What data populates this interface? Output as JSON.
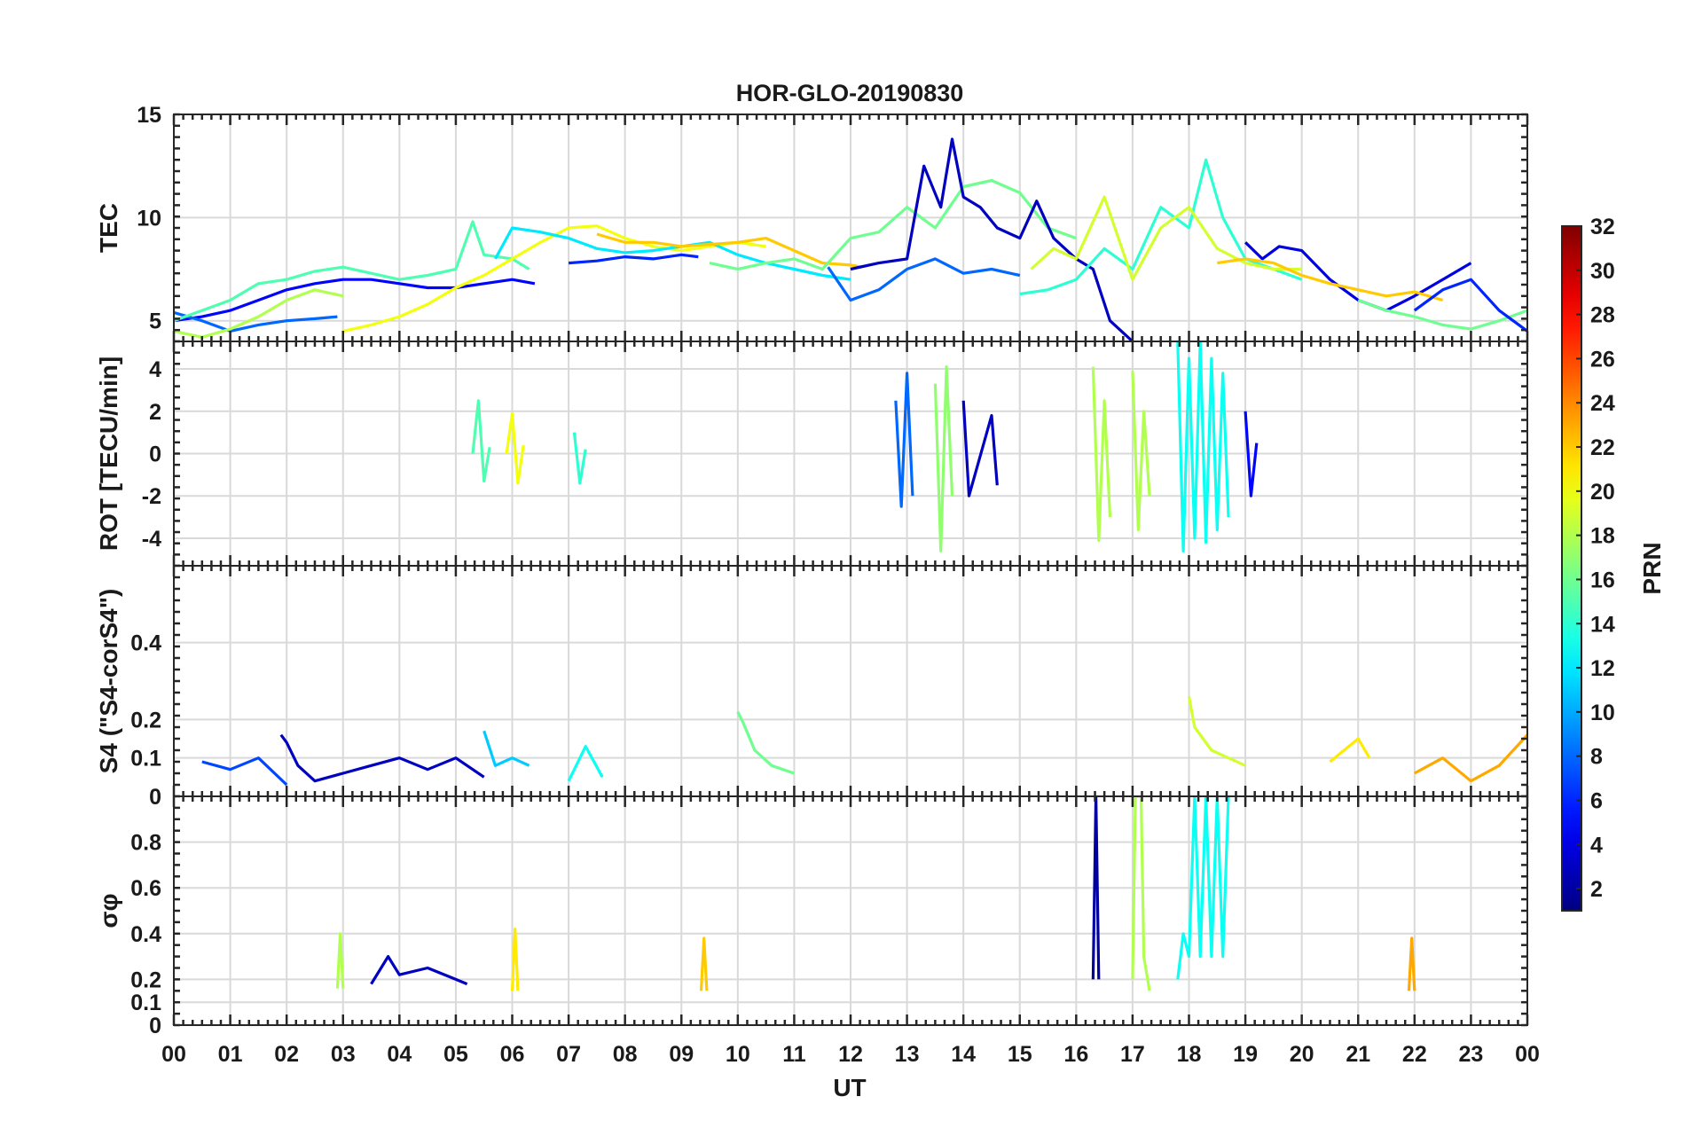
{
  "chart_data": {
    "type": "line",
    "title": "HOR-GLO-20190830",
    "xlabel": "UT",
    "x_ticks": [
      "00",
      "01",
      "02",
      "03",
      "04",
      "05",
      "06",
      "07",
      "08",
      "09",
      "10",
      "11",
      "12",
      "13",
      "14",
      "15",
      "16",
      "17",
      "18",
      "19",
      "20",
      "21",
      "22",
      "23",
      "00"
    ],
    "xlim": [
      0,
      24
    ],
    "grid": true,
    "colorbar": {
      "label": "PRN",
      "colormap": "jet",
      "range": [
        1,
        32
      ],
      "ticks": [
        "2",
        "4",
        "6",
        "8",
        "10",
        "12",
        "14",
        "16",
        "18",
        "20",
        "22",
        "24",
        "26",
        "28",
        "30",
        "32"
      ]
    },
    "panels": [
      {
        "id": "tec",
        "ylabel": "TEC",
        "ylim": [
          4,
          15
        ],
        "yticks": [
          "5",
          "10",
          "15"
        ],
        "series": [
          {
            "prn": 5,
            "x": [
              0,
              0.5,
              1,
              1.5,
              2,
              2.5,
              3,
              3.5,
              4,
              4.5,
              5,
              5.5,
              6,
              6.4
            ],
            "y": [
              5,
              5.2,
              5.5,
              6,
              6.5,
              6.8,
              7,
              7,
              6.8,
              6.6,
              6.6,
              6.8,
              7,
              6.8
            ]
          },
          {
            "prn": 8,
            "x": [
              0,
              0.5,
              1,
              1.5,
              2,
              2.5,
              2.9
            ],
            "y": [
              5.4,
              5,
              4.5,
              4.8,
              5,
              5.1,
              5.2
            ]
          },
          {
            "prn": 15,
            "x": [
              0,
              0.5,
              1,
              1.5,
              2,
              2.5,
              3,
              3.5,
              4,
              4.5,
              5,
              5.3,
              5.5,
              6,
              6.3
            ],
            "y": [
              5,
              5.5,
              6,
              6.8,
              7,
              7.4,
              7.6,
              7.3,
              7,
              7.2,
              7.5,
              9.8,
              8.2,
              8,
              7.5
            ]
          },
          {
            "prn": 18,
            "x": [
              0,
              0.5,
              1,
              1.5,
              2,
              2.5,
              3
            ],
            "y": [
              4.5,
              4.2,
              4.6,
              5.2,
              6,
              6.5,
              6.2
            ]
          },
          {
            "prn": 20,
            "x": [
              3,
              3.5,
              4,
              4.5,
              5,
              5.5,
              6,
              6.5,
              7,
              7.5,
              8,
              8.5,
              9,
              9.5,
              10,
              10.5
            ],
            "y": [
              4.5,
              4.8,
              5.2,
              5.8,
              6.6,
              7.2,
              8,
              8.8,
              9.5,
              9.6,
              9,
              8.6,
              8.4,
              8.6,
              8.8,
              8.6
            ]
          },
          {
            "prn": 12,
            "x": [
              5.7,
              6,
              6.5,
              7,
              7.5,
              8,
              8.5,
              9,
              9.5,
              10,
              10.5,
              11,
              11.5,
              12
            ],
            "y": [
              8,
              9.5,
              9.3,
              9,
              8.5,
              8.3,
              8.4,
              8.6,
              8.8,
              8.2,
              7.8,
              7.5,
              7.2,
              7
            ]
          },
          {
            "prn": 6,
            "x": [
              7,
              7.5,
              8,
              8.5,
              9,
              9.3
            ],
            "y": [
              7.8,
              7.9,
              8.1,
              8,
              8.2,
              8.1
            ]
          },
          {
            "prn": 22,
            "x": [
              7.5,
              8,
              8.5,
              9,
              9.5,
              10,
              10.5,
              11,
              11.5,
              12,
              12.2
            ],
            "y": [
              9.2,
              8.8,
              8.8,
              8.6,
              8.7,
              8.8,
              9,
              8.4,
              7.8,
              7.7,
              7.6
            ]
          },
          {
            "prn": 16,
            "x": [
              9.5,
              10,
              10.5,
              11,
              11.5,
              12,
              12.5,
              13,
              13.5,
              14,
              14.5,
              15,
              15.5,
              16
            ],
            "y": [
              7.8,
              7.5,
              7.8,
              8,
              7.5,
              9,
              9.3,
              10.5,
              9.5,
              11.5,
              11.8,
              11.2,
              9.5,
              9
            ]
          },
          {
            "prn": 3,
            "x": [
              12,
              12.5,
              13,
              13.3,
              13.6,
              13.8,
              14,
              14.3,
              14.6,
              15,
              15.3,
              15.6,
              16,
              16.3,
              16.6,
              17
            ],
            "y": [
              7.5,
              7.8,
              8,
              12.5,
              10.5,
              13.8,
              11,
              10.5,
              9.5,
              9,
              10.8,
              9,
              8,
              7.5,
              5,
              4
            ]
          },
          {
            "prn": 8,
            "x": [
              11.6,
              12,
              12.5,
              13,
              13.5,
              14,
              14.5,
              15
            ],
            "y": [
              7.6,
              6,
              6.5,
              7.5,
              8,
              7.3,
              7.5,
              7.2
            ]
          },
          {
            "prn": 14,
            "x": [
              15,
              15.5,
              16,
              16.5,
              17,
              17.5,
              18,
              18.3,
              18.6,
              19,
              19.5,
              20
            ],
            "y": [
              6.3,
              6.5,
              7,
              8.5,
              7.5,
              10.5,
              9.5,
              12.8,
              10,
              8,
              7.5,
              7
            ]
          },
          {
            "prn": 19,
            "x": [
              15.2,
              15.6,
              16,
              16.5,
              17,
              17.5,
              18,
              18.5,
              19,
              19.5,
              20
            ],
            "y": [
              7.5,
              8.5,
              8,
              11,
              7,
              9.5,
              10.5,
              8.5,
              7.8,
              7.5,
              7.5
            ]
          },
          {
            "prn": 4,
            "x": [
              19,
              19.3,
              19.6,
              20,
              20.5,
              21,
              21.5,
              22,
              22.5,
              23
            ],
            "y": [
              8.8,
              8,
              8.6,
              8.4,
              7,
              6,
              5.5,
              6.2,
              7,
              7.8
            ]
          },
          {
            "prn": 22,
            "x": [
              18.5,
              19,
              19.5,
              20,
              20.5,
              21,
              21.5,
              22,
              22.5
            ],
            "y": [
              7.8,
              8,
              7.8,
              7.2,
              6.8,
              6.5,
              6.2,
              6.4,
              6
            ]
          },
          {
            "prn": 16,
            "x": [
              21,
              21.5,
              22,
              22.5,
              23,
              23.5,
              24
            ],
            "y": [
              6,
              5.5,
              5.2,
              4.8,
              4.6,
              5,
              5.5
            ]
          },
          {
            "prn": 6,
            "x": [
              22,
              22.5,
              23,
              23.5,
              24
            ],
            "y": [
              5.5,
              6.5,
              7,
              5.5,
              4.5
            ]
          }
        ]
      },
      {
        "id": "rot",
        "ylabel": "ROT [TECU/min]",
        "ylim": [
          -5.3,
          5.3
        ],
        "yticks": [
          "-4",
          "-2",
          "0",
          "2",
          "4"
        ],
        "series": [
          {
            "prn": 15,
            "x": [
              5.3,
              5.4,
              5.5,
              5.6
            ],
            "y": [
              0,
              2.5,
              -1.3,
              0.3
            ]
          },
          {
            "prn": 20,
            "x": [
              5.9,
              6,
              6.1,
              6.2
            ],
            "y": [
              0,
              1.9,
              -1.4,
              0.4
            ]
          },
          {
            "prn": 14,
            "x": [
              7.1,
              7.2,
              7.3
            ],
            "y": [
              1,
              -1.4,
              0.2
            ]
          },
          {
            "prn": 8,
            "x": [
              12.8,
              12.9,
              13,
              13.1
            ],
            "y": [
              2.5,
              -2.5,
              3.8,
              -2
            ]
          },
          {
            "prn": 17,
            "x": [
              13.5,
              13.6,
              13.7,
              13.8
            ],
            "y": [
              3.3,
              -4.6,
              4.1,
              -2
            ]
          },
          {
            "prn": 3,
            "x": [
              14,
              14.1,
              14.5,
              14.6
            ],
            "y": [
              2.5,
              -2,
              1.8,
              -1.5
            ]
          },
          {
            "prn": 18,
            "x": [
              16.3,
              16.4,
              16.5,
              16.6
            ],
            "y": [
              4.1,
              -4.1,
              2.5,
              -3
            ]
          },
          {
            "prn": 18,
            "x": [
              17,
              17.1,
              17.2,
              17.3
            ],
            "y": [
              3.9,
              -3.6,
              2,
              -2
            ]
          },
          {
            "prn": 13,
            "x": [
              17.8,
              17.9,
              18,
              18.1,
              18.2,
              18.3,
              18.4,
              18.5,
              18.6,
              18.7
            ],
            "y": [
              5.3,
              -4.6,
              4.5,
              -4,
              5.3,
              -4.2,
              4.5,
              -3.6,
              3.8,
              -3
            ]
          },
          {
            "prn": 5,
            "x": [
              19,
              19.1,
              19.2
            ],
            "y": [
              2,
              -2,
              0.5
            ]
          }
        ]
      },
      {
        "id": "s4",
        "ylabel": "S4 (\"S4-corS4\")",
        "ylim": [
          0,
          0.6
        ],
        "yticks": [
          "0",
          "0.1",
          "0.2",
          "0.4"
        ],
        "series": [
          {
            "prn": 3,
            "x": [
              1.9,
              2,
              2.2,
              2.5,
              3,
              3.5,
              4,
              4.5,
              5,
              5.5
            ],
            "y": [
              0.16,
              0.14,
              0.08,
              0.04,
              0.06,
              0.08,
              0.1,
              0.07,
              0.1,
              0.05
            ]
          },
          {
            "prn": 11,
            "x": [
              5.5,
              5.7,
              6,
              6.3
            ],
            "y": [
              0.17,
              0.08,
              0.1,
              0.08
            ]
          },
          {
            "prn": 13,
            "x": [
              7,
              7.3,
              7.6
            ],
            "y": [
              0.04,
              0.13,
              0.05
            ]
          },
          {
            "prn": 16,
            "x": [
              10,
              10.1,
              10.3,
              10.6,
              11
            ],
            "y": [
              0.22,
              0.19,
              0.12,
              0.08,
              0.06
            ]
          },
          {
            "prn": 19,
            "x": [
              18,
              18.1,
              18.4,
              18.7,
              19
            ],
            "y": [
              0.26,
              0.18,
              0.12,
              0.1,
              0.08
            ]
          },
          {
            "prn": 21,
            "x": [
              20.5,
              21,
              21.2
            ],
            "y": [
              0.09,
              0.15,
              0.1
            ]
          },
          {
            "prn": 23,
            "x": [
              22,
              22.5,
              23,
              23.5,
              24
            ],
            "y": [
              0.06,
              0.1,
              0.04,
              0.08,
              0.16
            ]
          },
          {
            "prn": 7,
            "x": [
              0.5,
              1,
              1.5,
              2
            ],
            "y": [
              0.09,
              0.07,
              0.1,
              0.03
            ]
          }
        ]
      },
      {
        "id": "sigma",
        "ylabel": "σφ",
        "ylim": [
          0,
          1
        ],
        "yticks": [
          "0",
          "0.1",
          "0.2",
          "0.4",
          "0.6",
          "0.8"
        ],
        "series": [
          {
            "prn": 3,
            "x": [
              3.5,
              3.8,
              4,
              4.5,
              5,
              5.2
            ],
            "y": [
              0.18,
              0.3,
              0.22,
              0.25,
              0.2,
              0.18
            ]
          },
          {
            "prn": 18,
            "x": [
              2.9,
              2.95,
              3
            ],
            "y": [
              0.16,
              0.4,
              0.16
            ]
          },
          {
            "prn": 21,
            "x": [
              6,
              6.05,
              6.1
            ],
            "y": [
              0.15,
              0.42,
              0.15
            ]
          },
          {
            "prn": 22,
            "x": [
              9.35,
              9.4,
              9.45
            ],
            "y": [
              0.15,
              0.38,
              0.15
            ]
          },
          {
            "prn": 2,
            "x": [
              16.3,
              16.35,
              16.4
            ],
            "y": [
              0.2,
              1,
              0.2
            ]
          },
          {
            "prn": 18,
            "x": [
              17,
              17.05,
              17.15,
              17.2,
              17.3
            ],
            "y": [
              0.2,
              1,
              1,
              0.3,
              0.15
            ]
          },
          {
            "prn": 13,
            "x": [
              17.8,
              17.9,
              18,
              18.1,
              18.2,
              18.3,
              18.4,
              18.5,
              18.6,
              18.7
            ],
            "y": [
              0.2,
              0.4,
              0.3,
              1,
              0.3,
              1,
              0.3,
              1,
              0.3,
              1
            ]
          },
          {
            "prn": 23,
            "x": [
              21.9,
              21.95,
              22
            ],
            "y": [
              0.15,
              0.38,
              0.15
            ]
          }
        ]
      }
    ]
  }
}
